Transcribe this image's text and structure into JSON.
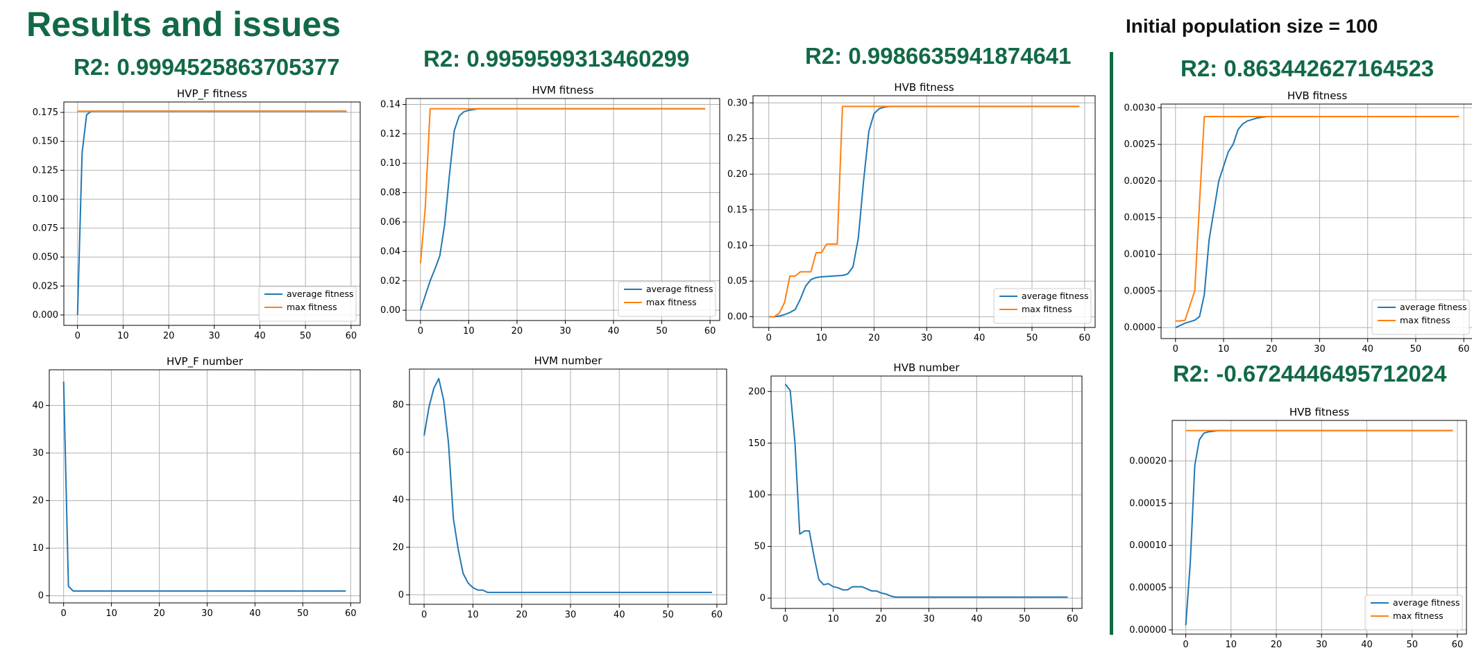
{
  "page": {
    "title": "Results and issues",
    "note": "Initial population size = 100",
    "r2_labels": [
      "R2: 0.9994525863705377",
      "R2: 0.9959599313460299",
      "R2: 0.9986635941874641",
      "R2: 0.863442627164523",
      "R2: -0.6724446495712024"
    ]
  },
  "colors": {
    "title": "#116a45",
    "avg": "#1f77b4",
    "max": "#ff7f0e",
    "grid": "#b0b0b0"
  },
  "chart_data": [
    {
      "type": "line",
      "title": "HVP_F fitness",
      "grid": true,
      "legend": "lower-right",
      "xlim": [
        -3,
        62
      ],
      "ylim": [
        -0.009,
        0.184
      ],
      "xticks": [
        0,
        10,
        20,
        30,
        40,
        50,
        60
      ],
      "yticks": [
        0.0,
        0.025,
        0.05,
        0.075,
        0.1,
        0.125,
        0.15,
        0.175
      ],
      "ydec": 3,
      "series": [
        {
          "name": "average fitness",
          "color": "#1f77b4",
          "x": [
            0,
            1,
            2,
            3,
            59
          ],
          "y": [
            0,
            0.14,
            0.173,
            0.176,
            0.176
          ]
        },
        {
          "name": "max fitness",
          "color": "#ff7f0e",
          "x": [
            0,
            59
          ],
          "y": [
            0.176,
            0.176
          ]
        }
      ]
    },
    {
      "type": "line",
      "title": "HVM fitness",
      "grid": true,
      "legend": "lower-right",
      "xlim": [
        -3,
        62
      ],
      "ylim": [
        -0.007,
        0.144
      ],
      "xticks": [
        0,
        10,
        20,
        30,
        40,
        50,
        60
      ],
      "yticks": [
        0.0,
        0.02,
        0.04,
        0.06,
        0.08,
        0.1,
        0.12,
        0.14
      ],
      "ydec": 2,
      "series": [
        {
          "name": "average fitness",
          "color": "#1f77b4",
          "x": [
            0,
            1,
            2,
            3,
            4,
            5,
            6,
            7,
            8,
            9,
            10,
            12,
            15,
            59
          ],
          "y": [
            0,
            0.01,
            0.02,
            0.028,
            0.037,
            0.058,
            0.092,
            0.122,
            0.132,
            0.135,
            0.136,
            0.137,
            0.137,
            0.137
          ]
        },
        {
          "name": "max fitness",
          "color": "#ff7f0e",
          "x": [
            0,
            1,
            2,
            59
          ],
          "y": [
            0.032,
            0.07,
            0.137,
            0.137
          ]
        }
      ]
    },
    {
      "type": "line",
      "title": "HVB fitness",
      "grid": true,
      "legend": "lower-right",
      "xlim": [
        -3,
        62
      ],
      "ylim": [
        -0.015,
        0.31
      ],
      "xticks": [
        0,
        10,
        20,
        30,
        40,
        50,
        60
      ],
      "yticks": [
        0.0,
        0.05,
        0.1,
        0.15,
        0.2,
        0.25,
        0.3
      ],
      "ydec": 2,
      "series": [
        {
          "name": "average fitness",
          "color": "#1f77b4",
          "x": [
            0,
            1,
            2,
            3,
            4,
            5,
            6,
            7,
            8,
            9,
            10,
            12,
            14,
            15,
            16,
            17,
            18,
            19,
            20,
            21,
            22,
            23,
            25,
            59
          ],
          "y": [
            0,
            0,
            0.001,
            0.003,
            0.006,
            0.01,
            0.025,
            0.043,
            0.052,
            0.055,
            0.056,
            0.057,
            0.058,
            0.06,
            0.07,
            0.11,
            0.19,
            0.26,
            0.285,
            0.292,
            0.294,
            0.295,
            0.295,
            0.295
          ]
        },
        {
          "name": "max fitness",
          "color": "#ff7f0e",
          "x": [
            0,
            1,
            2,
            3,
            4,
            5,
            6,
            7,
            8,
            9,
            10,
            11,
            12,
            13,
            14,
            59
          ],
          "y": [
            0,
            0,
            0.005,
            0.02,
            0.057,
            0.057,
            0.063,
            0.063,
            0.063,
            0.09,
            0.09,
            0.102,
            0.102,
            0.102,
            0.295,
            0.295
          ]
        }
      ]
    },
    {
      "type": "line",
      "title": "HVB fitness",
      "grid": true,
      "legend": "lower-right",
      "xlim": [
        -3,
        62
      ],
      "ylim": [
        -0.00015,
        0.00305
      ],
      "xticks": [
        0,
        10,
        20,
        30,
        40,
        50,
        60
      ],
      "yticks": [
        0.0,
        0.0005,
        0.001,
        0.0015,
        0.002,
        0.0025,
        0.003
      ],
      "ydec": 4,
      "series": [
        {
          "name": "average fitness",
          "color": "#1f77b4",
          "x": [
            0,
            1,
            2,
            3,
            4,
            5,
            6,
            7,
            8,
            9,
            10,
            11,
            12,
            13,
            14,
            15,
            16,
            17,
            18,
            19,
            20,
            59
          ],
          "y": [
            0,
            3e-05,
            6e-05,
            8e-05,
            0.0001,
            0.00015,
            0.00045,
            0.0012,
            0.0016,
            0.002,
            0.0022,
            0.0024,
            0.0025,
            0.0027,
            0.00278,
            0.00282,
            0.00284,
            0.00286,
            0.00287,
            0.00288,
            0.00288,
            0.00288
          ]
        },
        {
          "name": "max fitness",
          "color": "#ff7f0e",
          "x": [
            0,
            1,
            2,
            3,
            4,
            5,
            6,
            59
          ],
          "y": [
            9e-05,
            9e-05,
            0.0001,
            0.0003,
            0.0005,
            0.0017,
            0.00288,
            0.00288
          ]
        }
      ]
    },
    {
      "type": "line",
      "title": "HVB fitness",
      "grid": true,
      "legend": "lower-right",
      "xlim": [
        -3,
        62
      ],
      "ylim": [
        -5e-06,
        0.000248
      ],
      "xticks": [
        0,
        10,
        20,
        30,
        40,
        50,
        60
      ],
      "yticks": [
        0.0,
        5e-05,
        0.0001,
        0.00015,
        0.0002
      ],
      "ydec": 5,
      "series": [
        {
          "name": "average fitness",
          "color": "#1f77b4",
          "x": [
            0,
            1,
            2,
            3,
            4,
            5,
            6,
            7,
            8,
            59
          ],
          "y": [
            5.5e-06,
            8e-05,
            0.000195,
            0.000225,
            0.000233,
            0.0002345,
            0.000235,
            0.000236,
            0.000236,
            0.000236
          ]
        },
        {
          "name": "max fitness",
          "color": "#ff7f0e",
          "x": [
            0,
            59
          ],
          "y": [
            0.000236,
            0.000236
          ]
        }
      ]
    },
    {
      "type": "line",
      "title": "HVP_F number",
      "grid": true,
      "xlim": [
        -3,
        62
      ],
      "ylim": [
        -1.5,
        47.5
      ],
      "xticks": [
        0,
        10,
        20,
        30,
        40,
        50,
        60
      ],
      "yticks": [
        0,
        10,
        20,
        30,
        40
      ],
      "ydec": 0,
      "series": [
        {
          "color": "#1f77b4",
          "x": [
            0,
            1,
            2,
            3,
            59
          ],
          "y": [
            45,
            2,
            1,
            1,
            1
          ]
        }
      ]
    },
    {
      "type": "line",
      "title": "HVM number",
      "grid": true,
      "xlim": [
        -3,
        62
      ],
      "ylim": [
        -4,
        95
      ],
      "xticks": [
        0,
        10,
        20,
        30,
        40,
        50,
        60
      ],
      "yticks": [
        0,
        20,
        40,
        60,
        80
      ],
      "ydec": 0,
      "series": [
        {
          "color": "#1f77b4",
          "x": [
            0,
            1,
            2,
            3,
            4,
            5,
            6,
            7,
            8,
            9,
            10,
            11,
            12,
            13,
            14,
            59
          ],
          "y": [
            67,
            79,
            87,
            91,
            82,
            64,
            32,
            19,
            9,
            5,
            3,
            2,
            2,
            1,
            1,
            1
          ]
        }
      ]
    },
    {
      "type": "line",
      "title": "HVB number",
      "grid": true,
      "xlim": [
        -3,
        62
      ],
      "ylim": [
        -10,
        215
      ],
      "xticks": [
        0,
        10,
        20,
        30,
        40,
        50,
        60
      ],
      "yticks": [
        0,
        50,
        100,
        150,
        200
      ],
      "ydec": 0,
      "series": [
        {
          "color": "#1f77b4",
          "x": [
            0,
            1,
            2,
            3,
            4,
            5,
            6,
            7,
            8,
            9,
            10,
            11,
            12,
            13,
            14,
            15,
            16,
            17,
            18,
            19,
            20,
            21,
            22,
            23,
            25,
            59
          ],
          "y": [
            207,
            201,
            150,
            62,
            65,
            65,
            40,
            18,
            13,
            14,
            11,
            10,
            8,
            8,
            11,
            11,
            11,
            9,
            7,
            7,
            5,
            4,
            2,
            1,
            1,
            1
          ]
        }
      ]
    }
  ]
}
